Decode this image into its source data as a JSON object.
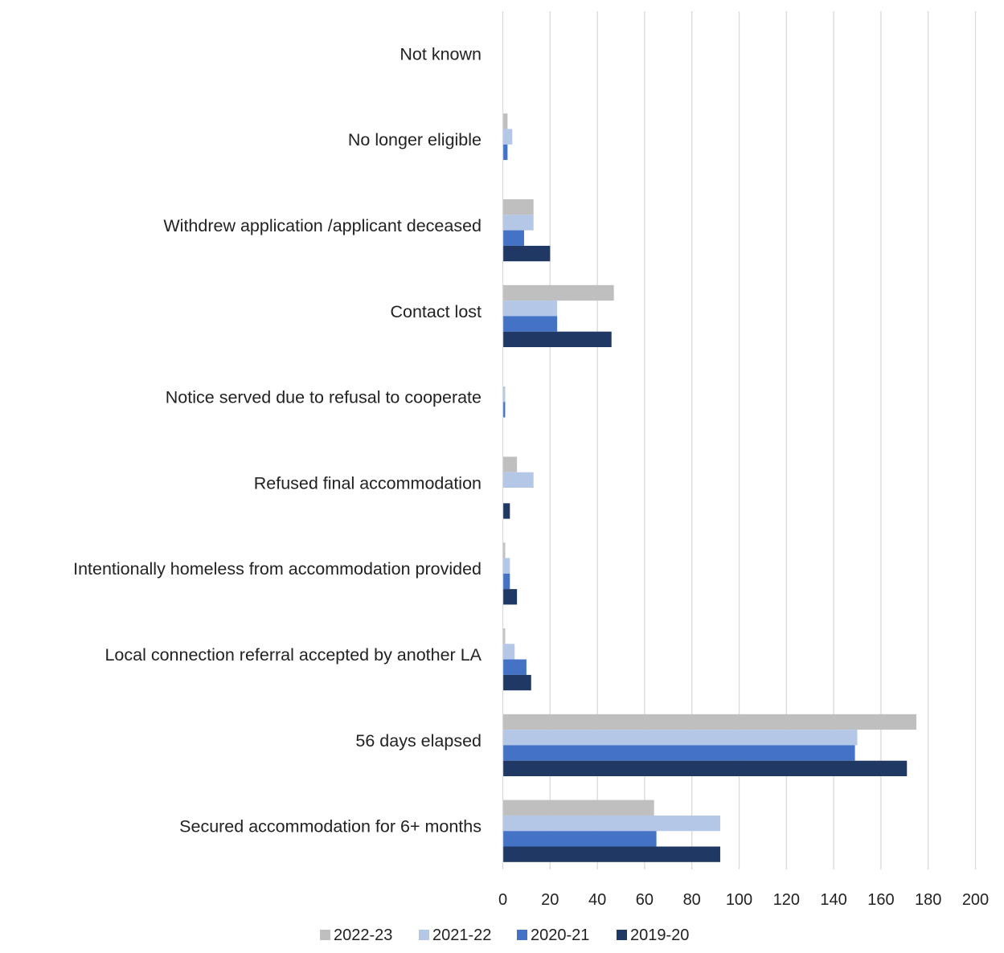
{
  "chart_data": {
    "type": "bar",
    "orientation": "horizontal",
    "title": "",
    "xlabel": "",
    "ylabel": "",
    "xlim": [
      0,
      200
    ],
    "ticks": [
      0,
      20,
      40,
      60,
      80,
      100,
      120,
      140,
      160,
      180,
      200
    ],
    "grid": "vertical",
    "legend_position": "bottom",
    "categories": [
      "Not known",
      "No longer eligible",
      "Withdrew application /applicant deceased",
      "Contact lost",
      "Notice served due to refusal to cooperate",
      "Refused final accommodation",
      "Intentionally homeless from accommodation provided",
      "Local connection referral accepted by another LA",
      "56 days elapsed",
      "Secured accommodation for 6+ months"
    ],
    "series": [
      {
        "name": "2022-23",
        "color": "#BFBFBF",
        "values": [
          0,
          2,
          13,
          47,
          0,
          6,
          1,
          1,
          175,
          64
        ]
      },
      {
        "name": "2021-22",
        "color": "#B4C7E7",
        "values": [
          0,
          4,
          13,
          23,
          1,
          13,
          3,
          5,
          150,
          92
        ]
      },
      {
        "name": "2020-21",
        "color": "#4472C4",
        "values": [
          0,
          2,
          9,
          23,
          1,
          0,
          3,
          10,
          149,
          65
        ]
      },
      {
        "name": "2019-20",
        "color": "#203864",
        "values": [
          0,
          0,
          20,
          46,
          0,
          3,
          6,
          12,
          171,
          92
        ]
      }
    ]
  }
}
